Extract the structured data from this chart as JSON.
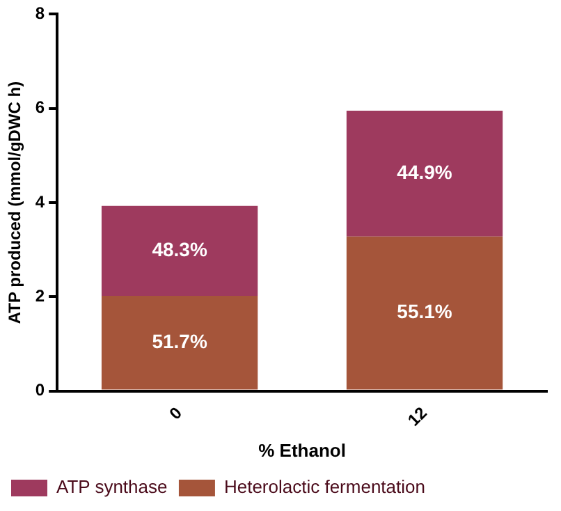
{
  "chart_data": {
    "type": "bar",
    "stacked": true,
    "xlabel": "% Ethanol",
    "ylabel": "ATP produced (mmol/gDWC h)",
    "categories": [
      "0",
      "12"
    ],
    "series": [
      {
        "name": "Heterolactic fermentation",
        "color": "#a5553a",
        "values": [
          2.02,
          3.28
        ]
      },
      {
        "name": "ATP synthase",
        "color": "#9e3a5e",
        "values": [
          1.91,
          2.67
        ]
      }
    ],
    "annotations": [
      "51.7%",
      "55.1%",
      "48.3%",
      "44.9%"
    ],
    "ylim": [
      0,
      8
    ],
    "yticks": [
      0,
      2,
      4,
      6,
      8
    ],
    "grid": false,
    "legend": "bottom"
  }
}
